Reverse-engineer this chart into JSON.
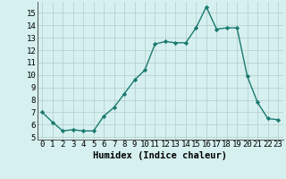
{
  "x": [
    0,
    1,
    2,
    3,
    4,
    5,
    6,
    7,
    8,
    9,
    10,
    11,
    12,
    13,
    14,
    15,
    16,
    17,
    18,
    19,
    20,
    21,
    22,
    23
  ],
  "y": [
    7.0,
    6.2,
    5.5,
    5.6,
    5.5,
    5.5,
    6.7,
    7.4,
    8.5,
    9.6,
    10.4,
    12.5,
    12.7,
    12.6,
    12.6,
    13.8,
    15.5,
    13.7,
    13.8,
    13.8,
    9.9,
    7.8,
    6.5,
    6.4
  ],
  "line_color": "#1a7a6e",
  "marker": "D",
  "markersize": 2.2,
  "bg_color": "#d6f0f0",
  "grid_color": "#b8d0d0",
  "xlabel": "Humidex (Indice chaleur)",
  "ylabel_ticks": [
    5,
    6,
    7,
    8,
    9,
    10,
    11,
    12,
    13,
    14,
    15
  ],
  "xlim": [
    -0.5,
    23.5
  ],
  "ylim": [
    4.8,
    15.9
  ],
  "xlabel_fontsize": 7.5,
  "tick_fontsize": 6.5,
  "linewidth": 1.0
}
